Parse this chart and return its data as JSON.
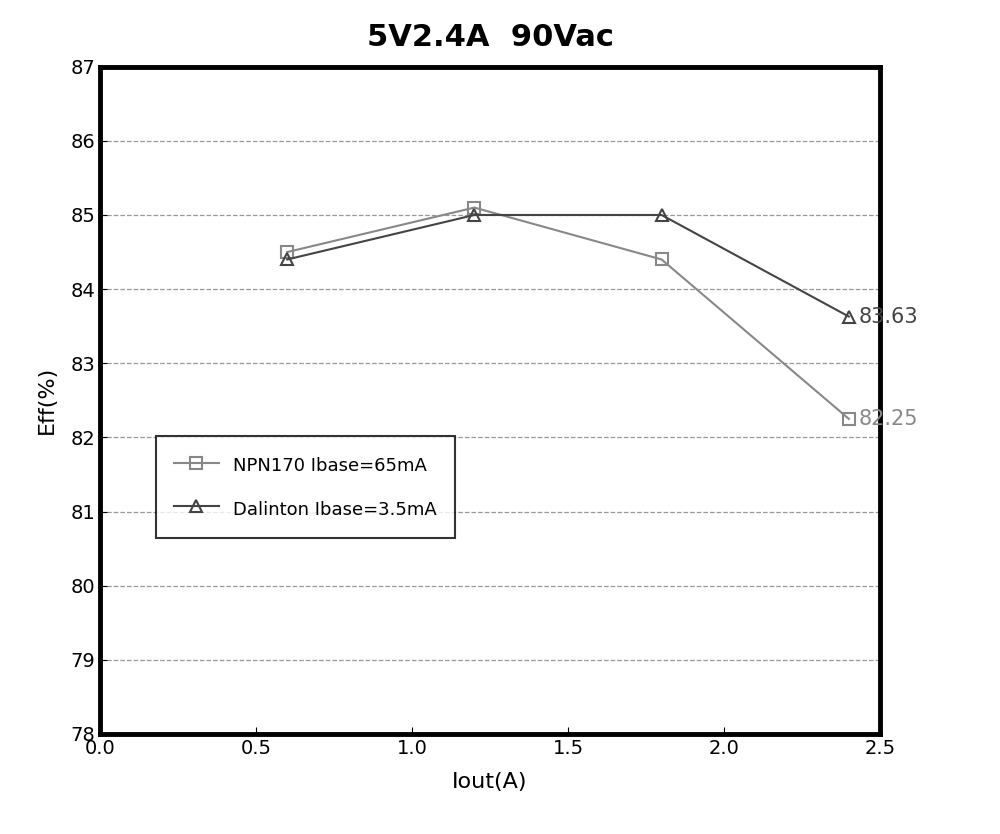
{
  "title": "5V2.4A  90Vac",
  "xlabel": "Iout(A)",
  "ylabel": "Eff(%)",
  "xlim": [
    0.0,
    2.5
  ],
  "ylim": [
    78,
    87
  ],
  "yticks": [
    78,
    79,
    80,
    81,
    82,
    83,
    84,
    85,
    86,
    87
  ],
  "xticks": [
    0.0,
    0.5,
    1.0,
    1.5,
    2.0,
    2.5
  ],
  "series1": {
    "label": "NPN170 Ibase=65mA",
    "x": [
      0.6,
      1.2,
      1.8,
      2.4
    ],
    "y": [
      84.5,
      85.1,
      84.4,
      82.25
    ],
    "color": "#888888",
    "marker": "s",
    "ann_text": "82.25",
    "ann_x": 2.4,
    "ann_y": 82.25,
    "ann_color": "#888888"
  },
  "series2": {
    "label": "Dalinton Ibase=3.5mA",
    "x": [
      0.6,
      1.2,
      1.8,
      2.4
    ],
    "y": [
      84.4,
      85.0,
      85.0,
      83.63
    ],
    "color": "#444444",
    "marker": "^",
    "ann_text": "83.63",
    "ann_x": 2.4,
    "ann_y": 83.63,
    "ann_color": "#444444"
  },
  "title_fontsize": 22,
  "axis_label_fontsize": 16,
  "tick_fontsize": 14,
  "legend_fontsize": 13,
  "bg_color": "#ffffff",
  "plot_bg_color": "#ffffff",
  "border_color": "#000000",
  "spine_linewidth": 3.5,
  "grid_color": "#555555",
  "grid_style": "--",
  "grid_alpha": 0.6,
  "grid_linewidth": 0.9
}
